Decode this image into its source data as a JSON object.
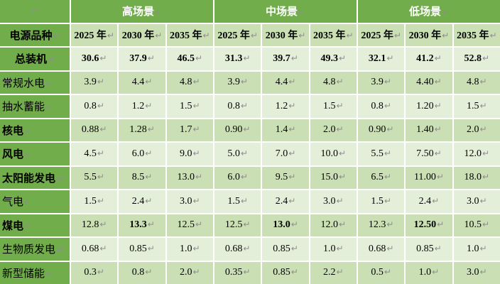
{
  "doc": {
    "paragraph_mark": "↵",
    "colors": {
      "header_green": "#72ad4b",
      "cell_dark_green": "#cbdfb5",
      "cell_light_green": "#e4efda",
      "grid_white": "#ffffff",
      "scenario_text": "#ffffff",
      "body_text": "#000000",
      "paragraph_mark_gray": "#8e8e8e"
    },
    "table": {
      "corner_label": "",
      "row_header_title": "电源品种",
      "scenarios": [
        {
          "label": "高场景"
        },
        {
          "label": "中场景"
        },
        {
          "label": "低场景"
        }
      ],
      "year_headers": [
        "2025 年",
        "2030 年",
        "2035 年"
      ],
      "rows": [
        {
          "label": "总装机",
          "label_bold": true,
          "label_centered": true,
          "shade": "light",
          "values": [
            "30.6",
            "37.9",
            "46.5",
            "31.3",
            "39.7",
            "49.3",
            "32.1",
            "41.2",
            "52.8"
          ],
          "bold_value_indices": [
            0,
            1,
            2,
            3,
            4,
            5,
            6,
            7,
            8
          ]
        },
        {
          "label": "常规水电",
          "label_bold": false,
          "label_centered": false,
          "shade": "dark",
          "values": [
            "3.9",
            "4.4",
            "4.8",
            "3.9",
            "4.4",
            "4.8",
            "3.9",
            "4.40",
            "4.8"
          ],
          "bold_value_indices": []
        },
        {
          "label": "抽水蓄能",
          "label_bold": false,
          "label_centered": false,
          "shade": "light",
          "values": [
            "0.8",
            "1.2",
            "1.5",
            "0.8",
            "1.2",
            "1.5",
            "0.8",
            "1.20",
            "1.5"
          ],
          "bold_value_indices": []
        },
        {
          "label": "核电",
          "label_bold": true,
          "label_centered": false,
          "shade": "dark",
          "values": [
            "0.88",
            "1.28",
            "1.7",
            "0.90",
            "1.4",
            "2.0",
            "0.90",
            "1.40",
            "2.0"
          ],
          "bold_value_indices": []
        },
        {
          "label": "风电",
          "label_bold": true,
          "label_centered": false,
          "shade": "light",
          "values": [
            "4.5",
            "6.0",
            "9.0",
            "5.0",
            "7.0",
            "10.0",
            "5.5",
            "7.50",
            "12.0"
          ],
          "bold_value_indices": []
        },
        {
          "label": "太阳能发电",
          "label_bold": true,
          "label_centered": false,
          "shade": "dark",
          "values": [
            "5.5",
            "8.5",
            "13.0",
            "6.0",
            "9.5",
            "15.0",
            "6.5",
            "11.00",
            "18.0"
          ],
          "bold_value_indices": []
        },
        {
          "label": "气电",
          "label_bold": false,
          "label_centered": false,
          "shade": "light",
          "values": [
            "1.5",
            "2.4",
            "3.0",
            "1.5",
            "2.4",
            "3.0",
            "1.5",
            "2.4",
            "3.0"
          ],
          "bold_value_indices": []
        },
        {
          "label": "煤电",
          "label_bold": true,
          "label_centered": false,
          "shade": "dark",
          "values": [
            "12.8",
            "13.3",
            "12.5",
            "12.5",
            "13.0",
            "12.0",
            "12.3",
            "12.50",
            "10.5"
          ],
          "bold_value_indices": [
            1,
            4,
            7
          ]
        },
        {
          "label": "生物质发电",
          "label_bold": false,
          "label_centered": false,
          "shade": "light",
          "values": [
            "0.68",
            "0.85",
            "1.0",
            "0.68",
            "0.85",
            "1.0",
            "0.68",
            "0.85",
            "1.0"
          ],
          "bold_value_indices": []
        },
        {
          "label": "新型储能",
          "label_bold": false,
          "label_centered": false,
          "shade": "dark",
          "values": [
            "0.3",
            "0.8",
            "2.0",
            "0.35",
            "0.85",
            "2.2",
            "0.5",
            "1.0",
            "3.0"
          ],
          "bold_value_indices": []
        }
      ]
    }
  }
}
